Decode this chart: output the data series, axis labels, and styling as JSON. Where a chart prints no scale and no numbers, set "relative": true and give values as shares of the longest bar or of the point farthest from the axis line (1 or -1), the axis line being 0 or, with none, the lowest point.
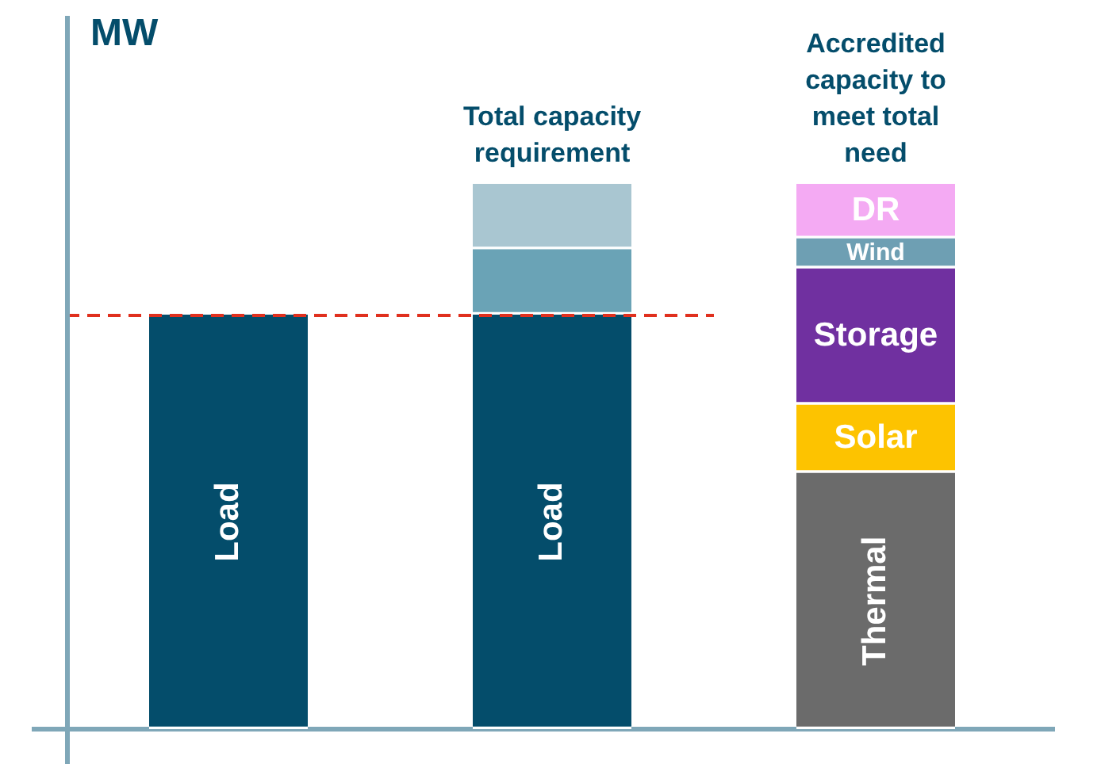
{
  "chart_data": {
    "type": "bar",
    "stacked": true,
    "relative": true,
    "ylabel": "MW",
    "categories": [
      null,
      "Total capacity requirement",
      "Accredited capacity to meet total need"
    ],
    "series": [
      {
        "name": "Load",
        "color": "#044d6b",
        "values": [
          0.76,
          0.76,
          null
        ]
      },
      {
        "color": "#6aa3b6",
        "values": [
          null,
          0.12,
          null
        ]
      },
      {
        "color": "#a9c6d1",
        "values": [
          null,
          0.12,
          null
        ]
      },
      {
        "name": "Thermal",
        "color": "#6b6b6b",
        "values": [
          null,
          null,
          0.47
        ]
      },
      {
        "name": "Solar",
        "color": "#fdc300",
        "values": [
          null,
          null,
          0.125
        ]
      },
      {
        "name": "Storage",
        "color": "#7030a0",
        "values": [
          null,
          null,
          0.25
        ]
      },
      {
        "name": "Wind",
        "color": "#6e9fb3",
        "values": [
          null,
          null,
          0.055
        ]
      },
      {
        "name": "DR",
        "color": "#f4aaf3",
        "values": [
          null,
          null,
          0.1
        ]
      }
    ],
    "ref_lines": [
      {
        "axis": "y",
        "value": 0.76,
        "color": "#e0301e",
        "line_style": "dashed"
      }
    ]
  }
}
